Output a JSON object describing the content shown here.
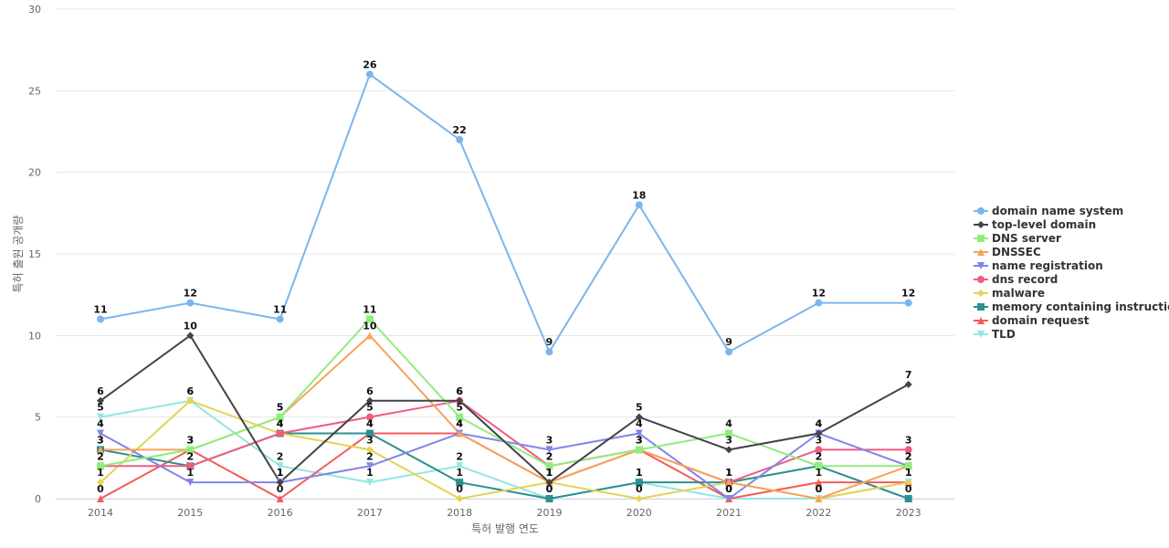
{
  "chart_data": {
    "type": "line",
    "xlabel": "특허 발행 연도",
    "ylabel": "특허 출원 공개량",
    "ylim": [
      0,
      30
    ],
    "yticks": [
      0,
      5,
      10,
      15,
      20,
      25,
      30
    ],
    "grid": true,
    "legend": "right",
    "categories": [
      "2014",
      "2015",
      "2016",
      "2017",
      "2018",
      "2019",
      "2020",
      "2021",
      "2022",
      "2023"
    ],
    "series": [
      {
        "name": "domain name system",
        "color": "#7cb5ec",
        "marker": "circle",
        "values": [
          11,
          12,
          11,
          26,
          22,
          9,
          18,
          9,
          12,
          12
        ]
      },
      {
        "name": "top-level domain",
        "color": "#434348",
        "marker": "diamond",
        "values": [
          6,
          10,
          1,
          6,
          6,
          1,
          5,
          3,
          4,
          7
        ]
      },
      {
        "name": "DNS server",
        "color": "#90ed7d",
        "marker": "square",
        "values": [
          2,
          3,
          5,
          11,
          5,
          2,
          3,
          4,
          2,
          2
        ]
      },
      {
        "name": "DNSSEC",
        "color": "#f7a35c",
        "marker": "triangle",
        "values": [
          3,
          3,
          5,
          10,
          4,
          1,
          3,
          1,
          0,
          2
        ]
      },
      {
        "name": "name registration",
        "color": "#8085e9",
        "marker": "triangle-down",
        "values": [
          4,
          1,
          1,
          2,
          4,
          3,
          4,
          0,
          4,
          2
        ]
      },
      {
        "name": "dns record",
        "color": "#f15c80",
        "marker": "circle",
        "values": [
          2,
          2,
          4,
          5,
          6,
          2,
          3,
          1,
          3,
          3
        ]
      },
      {
        "name": "malware",
        "color": "#e4d354",
        "marker": "diamond",
        "values": [
          1,
          6,
          4,
          3,
          0,
          1,
          0,
          1,
          0,
          1
        ]
      },
      {
        "name": "memory containing instruction",
        "color": "#2b908f",
        "marker": "square",
        "values": [
          3,
          2,
          4,
          4,
          1,
          0,
          1,
          1,
          2,
          0
        ]
      },
      {
        "name": "domain request",
        "color": "#f45b5b",
        "marker": "triangle",
        "values": [
          0,
          3,
          0,
          4,
          4,
          1,
          3,
          0,
          1,
          1
        ]
      },
      {
        "name": "TLD",
        "color": "#91e8e1",
        "marker": "triangle-down",
        "values": [
          5,
          6,
          2,
          1,
          2,
          0,
          1,
          0,
          0,
          1
        ]
      }
    ]
  }
}
